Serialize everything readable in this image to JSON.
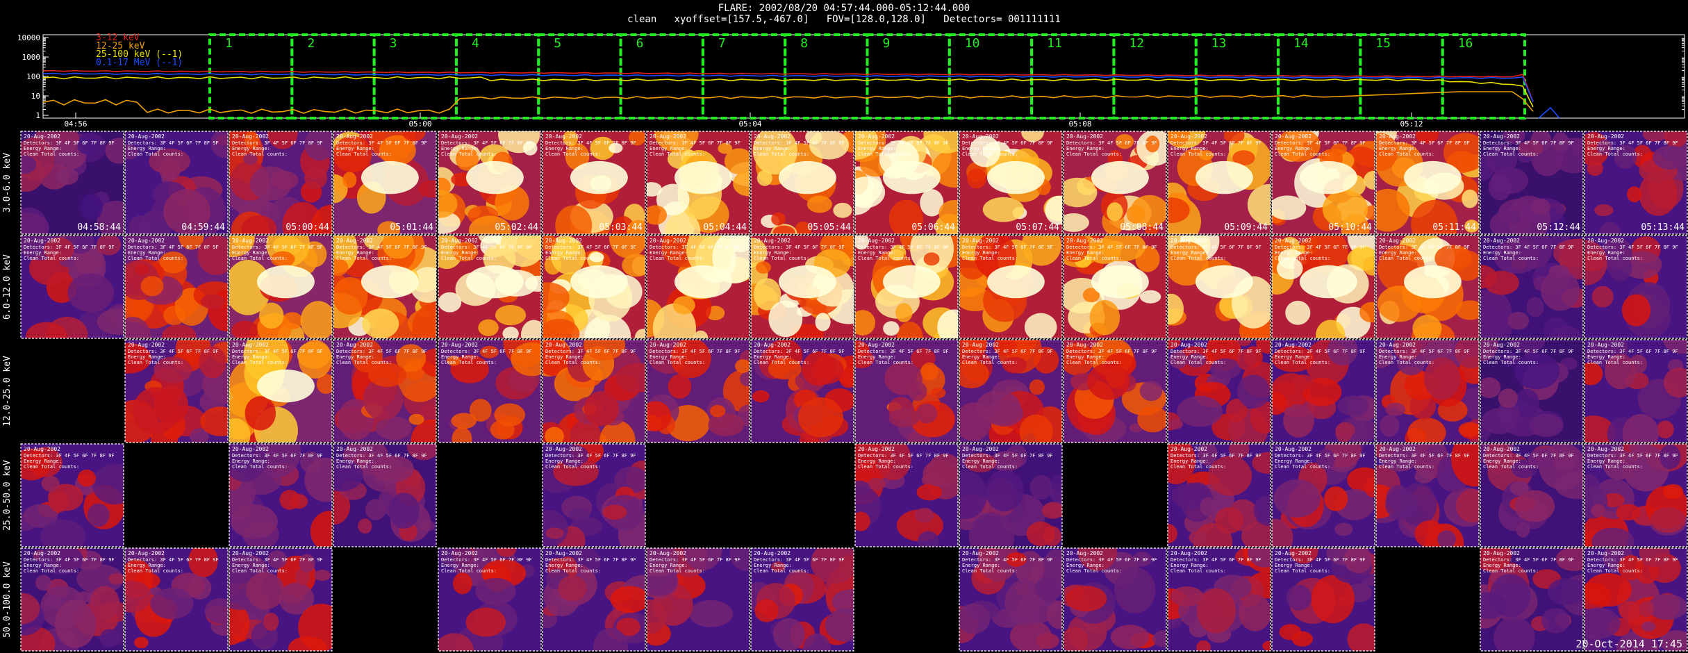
{
  "header": {
    "flare_line": "FLARE: 2002/08/20 04:57:44.000-05:12:44.000",
    "info_line": "clean   xyoffset=[157.5,-467.0]   FOV=[128.0,128.0]   Detectors= 001111111"
  },
  "lightcurve": {
    "y_ticks": [
      "10000",
      "1000",
      "100",
      "10",
      "1"
    ],
    "x_ticks": [
      "04:56",
      "05:00",
      "05:04",
      "05:08",
      "05:12"
    ],
    "legend": [
      {
        "label": "3-12 keV",
        "color": "#e0201a"
      },
      {
        "label": "12-25 keV",
        "color": "#f0a000"
      },
      {
        "label": "25-100 keV (--1)",
        "color": "#e8e000"
      },
      {
        "label": "0.1-17 MeV (--1)",
        "color": "#1a4cff"
      }
    ],
    "interval_labels": [
      "1",
      "2",
      "3",
      "4",
      "5",
      "6",
      "7",
      "8",
      "9",
      "10",
      "11",
      "12",
      "13",
      "14",
      "15",
      "16"
    ],
    "interval_color": "#22ee22"
  },
  "grid": {
    "row_labels": [
      "3.0-6.0 keV",
      "6.0-12.0 keV",
      "12.0-25.0 keV",
      "25.0-50.0 keV",
      "50.0-100.0 keV"
    ],
    "time_labels": [
      "04:58:44",
      "04:59:44",
      "05:00:44",
      "05:01:44",
      "05:02:44",
      "05:03:44",
      "05:04:44",
      "05:05:44",
      "05:06:44",
      "05:07:44",
      "05:08:44",
      "05:09:44",
      "05:10:44",
      "05:11:44",
      "05:12:44",
      "05:13:44"
    ],
    "panel_text": {
      "title_prefix": "20-Aug-2002",
      "detectors": "Detectors: 3F 4F 5F 6F 7F 8F 9F",
      "energy_prefix": "Energy Range:",
      "clean_prefix": "Clean   Total counts:"
    },
    "presence": [
      [
        1,
        1,
        1,
        1,
        1,
        1,
        1,
        1,
        1,
        1,
        1,
        1,
        1,
        1,
        1,
        1
      ],
      [
        1,
        1,
        1,
        1,
        1,
        1,
        1,
        1,
        1,
        1,
        1,
        1,
        1,
        1,
        1,
        1
      ],
      [
        0,
        1,
        1,
        1,
        1,
        1,
        1,
        1,
        1,
        1,
        1,
        1,
        1,
        1,
        1,
        1
      ],
      [
        1,
        0,
        1,
        1,
        0,
        1,
        0,
        0,
        1,
        1,
        0,
        1,
        1,
        1,
        1,
        1
      ],
      [
        1,
        1,
        1,
        0,
        1,
        1,
        1,
        1,
        0,
        1,
        1,
        1,
        1,
        0,
        1,
        1
      ]
    ],
    "intensity": [
      [
        0.35,
        0.45,
        0.55,
        0.75,
        0.9,
        0.95,
        0.95,
        0.95,
        0.95,
        0.95,
        0.9,
        0.9,
        0.9,
        0.9,
        0.35,
        0.45
      ],
      [
        0.45,
        0.65,
        0.8,
        0.9,
        0.95,
        0.95,
        0.95,
        0.95,
        0.95,
        0.95,
        0.95,
        0.95,
        0.95,
        0.9,
        0.4,
        0.45
      ],
      [
        0,
        0.5,
        0.75,
        0.6,
        0.6,
        0.65,
        0.6,
        0.55,
        0.6,
        0.55,
        0.6,
        0.45,
        0.45,
        0.5,
        0.35,
        0.45
      ],
      [
        0.45,
        0,
        0.45,
        0.4,
        0,
        0.45,
        0,
        0,
        0.45,
        0.4,
        0,
        0.45,
        0.45,
        0.45,
        0.4,
        0.45
      ],
      [
        0.4,
        0.45,
        0.45,
        0,
        0.45,
        0.45,
        0.45,
        0.45,
        0,
        0.45,
        0.45,
        0.45,
        0.45,
        0,
        0.4,
        0.45
      ]
    ]
  },
  "footer": {
    "timestamp": "20-Oct-2014 17:45"
  }
}
